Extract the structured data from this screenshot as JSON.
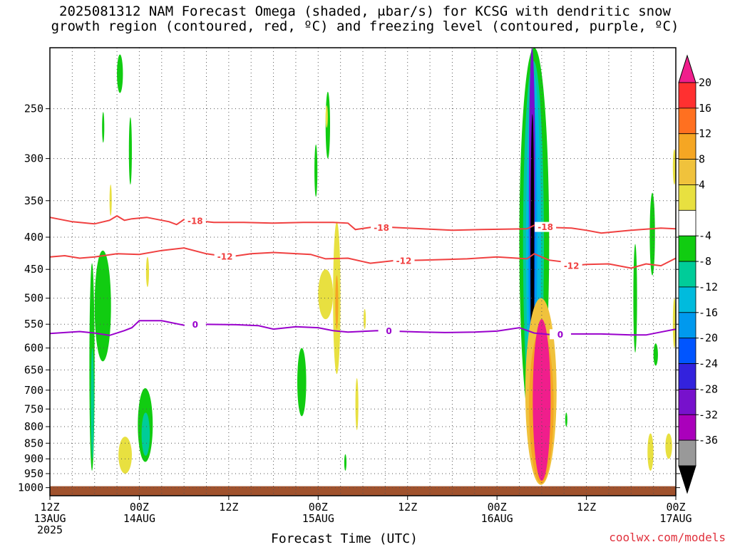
{
  "title_lines": [
    "2025081312 NAM Forecast Omega (shaded, μbar/s) for KCSG with dendritic snow",
    "growth region (contoured, red, ºC) and freezing level (contoured, purple, ºC)"
  ],
  "x_axis_label": "Forecast Time (UTC)",
  "credit": "coolwx.com/models",
  "chart_data": {
    "type": "heatmap",
    "y_axis": {
      "scale": "log",
      "units": "hPa",
      "range": [
        200,
        1030
      ],
      "ticks": [
        250,
        300,
        350,
        400,
        450,
        500,
        550,
        600,
        650,
        700,
        750,
        800,
        850,
        900,
        950,
        1000
      ]
    },
    "x_axis": {
      "range_hours": [
        0,
        84
      ],
      "ticks": [
        {
          "hour": 0,
          "lines": [
            "12Z",
            "13AUG",
            "2025"
          ]
        },
        {
          "hour": 12,
          "lines": [
            "00Z",
            "14AUG"
          ]
        },
        {
          "hour": 24,
          "lines": [
            "12Z"
          ]
        },
        {
          "hour": 36,
          "lines": [
            "00Z",
            "15AUG"
          ]
        },
        {
          "hour": 48,
          "lines": [
            "12Z"
          ]
        },
        {
          "hour": 60,
          "lines": [
            "00Z",
            "16AUG"
          ]
        },
        {
          "hour": 72,
          "lines": [
            "12Z"
          ]
        },
        {
          "hour": 84,
          "lines": [
            "00Z",
            "17AUG"
          ]
        }
      ],
      "grid_every_hours": 3
    },
    "grid": true,
    "colorbar": {
      "placement": "right",
      "labels": [
        "20",
        "16",
        "12",
        "8",
        "4",
        "-4",
        "-8",
        "-12",
        "-16",
        "-20",
        "-24",
        "-28",
        "-32",
        "-36"
      ],
      "bins": [
        {
          "color": "#f01e8c"
        },
        {
          "color": "#ff3030"
        },
        {
          "color": "#ff7020"
        },
        {
          "color": "#f5a623"
        },
        {
          "color": "#f0c23c"
        },
        {
          "color": "#e8e040"
        },
        {
          "color": "#ffffff"
        },
        {
          "color": "#11cc11"
        },
        {
          "color": "#00cc99"
        },
        {
          "color": "#00bbdd"
        },
        {
          "color": "#0099ee"
        },
        {
          "color": "#0055ff"
        },
        {
          "color": "#3322dd"
        },
        {
          "color": "#7711cc"
        },
        {
          "color": "#aa00bb"
        },
        {
          "color": "#999999"
        },
        {
          "color": "#000000"
        }
      ]
    },
    "ground_color": "#a0522d",
    "contours": [
      {
        "label": "-18",
        "color": "#f04040",
        "role": "dendritic snow growth region",
        "points": [
          [
            0,
            372
          ],
          [
            3,
            378
          ],
          [
            6,
            381
          ],
          [
            8,
            376
          ],
          [
            9,
            370
          ],
          [
            10,
            376
          ],
          [
            11,
            374
          ],
          [
            13,
            372
          ],
          [
            16,
            378
          ],
          [
            17,
            382
          ],
          [
            18,
            375
          ],
          [
            22,
            379
          ],
          [
            26,
            379
          ],
          [
            30,
            380
          ],
          [
            34,
            379
          ],
          [
            38,
            379
          ],
          [
            40,
            380
          ],
          [
            41,
            389
          ],
          [
            43,
            386
          ],
          [
            46,
            386
          ],
          [
            50,
            388
          ],
          [
            54,
            390
          ],
          [
            58,
            389
          ],
          [
            64,
            388
          ],
          [
            65,
            383
          ],
          [
            67,
            386
          ],
          [
            70,
            387
          ],
          [
            72,
            390
          ],
          [
            74,
            394
          ],
          [
            76,
            392
          ],
          [
            78,
            390
          ],
          [
            82,
            387
          ],
          [
            84,
            388
          ]
        ],
        "label_hours": [
          19.5,
          44.5,
          66.5
        ]
      },
      {
        "label": "-12",
        "color": "#f04040",
        "role": "dendritic snow growth region",
        "points": [
          [
            0,
            430
          ],
          [
            2,
            428
          ],
          [
            4,
            432
          ],
          [
            6,
            430
          ],
          [
            9,
            425
          ],
          [
            12,
            426
          ],
          [
            15,
            420
          ],
          [
            18,
            416
          ],
          [
            21,
            425
          ],
          [
            24,
            430
          ],
          [
            27,
            425
          ],
          [
            30,
            423
          ],
          [
            35,
            426
          ],
          [
            37,
            433
          ],
          [
            40,
            432
          ],
          [
            43,
            440
          ],
          [
            46,
            436
          ],
          [
            50,
            435
          ],
          [
            56,
            433
          ],
          [
            60,
            430
          ],
          [
            64,
            433
          ],
          [
            65,
            425
          ],
          [
            67,
            435
          ],
          [
            69,
            438
          ],
          [
            70,
            444
          ],
          [
            72,
            442
          ],
          [
            75,
            441
          ],
          [
            78,
            448
          ],
          [
            80,
            441
          ],
          [
            82,
            444
          ],
          [
            84,
            432
          ]
        ],
        "label_hours": [
          23.5,
          47.5,
          70.0
        ]
      },
      {
        "label": "0",
        "color": "#9900cc",
        "role": "freezing level",
        "points": [
          [
            0,
            569
          ],
          [
            4,
            565
          ],
          [
            6,
            568
          ],
          [
            8,
            573
          ],
          [
            10,
            563
          ],
          [
            11,
            557
          ],
          [
            12,
            543
          ],
          [
            15,
            543
          ],
          [
            18,
            552
          ],
          [
            20,
            550
          ],
          [
            25,
            551
          ],
          [
            28,
            553
          ],
          [
            30,
            560
          ],
          [
            33,
            555
          ],
          [
            36,
            557
          ],
          [
            38,
            563
          ],
          [
            40,
            566
          ],
          [
            44,
            563
          ],
          [
            50,
            566
          ],
          [
            53,
            567
          ],
          [
            57,
            566
          ],
          [
            60,
            564
          ],
          [
            63,
            557
          ],
          [
            65,
            568
          ],
          [
            67,
            571
          ],
          [
            70,
            570
          ],
          [
            74,
            570
          ],
          [
            78,
            572
          ],
          [
            80,
            572
          ],
          [
            82,
            566
          ],
          [
            84,
            560
          ]
        ],
        "label_hours": [
          19.5,
          45.5,
          68.5
        ]
      }
    ],
    "shaded_regions": [
      {
        "color": "#11cc11",
        "hours": [
          5.3,
          6.0
        ],
        "hpa": [
          440,
          940
        ]
      },
      {
        "color": "#00cc99",
        "hours": [
          5.5,
          5.9
        ],
        "hpa": [
          600,
          900
        ]
      },
      {
        "color": "#11cc11",
        "hours": [
          6.0,
          8.2
        ],
        "hpa": [
          420,
          630
        ]
      },
      {
        "color": "#11cc11",
        "hours": [
          9.0,
          9.8
        ],
        "hpa": [
          205,
          236
        ]
      },
      {
        "color": "#11cc11",
        "hours": [
          7.0,
          7.3
        ],
        "hpa": [
          253,
          283
        ]
      },
      {
        "color": "#e8e040",
        "hours": [
          8.0,
          8.3
        ],
        "hpa": [
          330,
          370
        ]
      },
      {
        "color": "#11cc11",
        "hours": [
          10.6,
          11.0
        ],
        "hpa": [
          258,
          330
        ]
      },
      {
        "color": "#e8e040",
        "hours": [
          12.9,
          13.3
        ],
        "hpa": [
          430,
          480
        ]
      },
      {
        "color": "#11cc11",
        "hours": [
          11.8,
          13.8
        ],
        "hpa": [
          695,
          910
        ]
      },
      {
        "color": "#00cc99",
        "hours": [
          12.3,
          13.4
        ],
        "hpa": [
          760,
          890
        ]
      },
      {
        "color": "#e8e040",
        "hours": [
          9.2,
          11.0
        ],
        "hpa": [
          830,
          950
        ]
      },
      {
        "color": "#11cc11",
        "hours": [
          37.0,
          37.6
        ],
        "hpa": [
          235,
          300
        ]
      },
      {
        "color": "#e8e040",
        "hours": [
          37.0,
          37.3
        ],
        "hpa": [
          247,
          268
        ]
      },
      {
        "color": "#11cc11",
        "hours": [
          35.5,
          35.9
        ],
        "hpa": [
          285,
          345
        ]
      },
      {
        "color": "#e8e040",
        "hours": [
          38.0,
          39.0
        ],
        "hpa": [
          378,
          660
        ]
      },
      {
        "color": "#f5a623",
        "hours": [
          38.3,
          38.7
        ],
        "hpa": [
          460,
          560
        ]
      },
      {
        "color": "#e8e040",
        "hours": [
          36.0,
          38.0
        ],
        "hpa": [
          450,
          540
        ]
      },
      {
        "color": "#e8e040",
        "hours": [
          42.1,
          42.4
        ],
        "hpa": [
          520,
          560
        ]
      },
      {
        "color": "#e8e040",
        "hours": [
          41.0,
          41.4
        ],
        "hpa": [
          670,
          810
        ]
      },
      {
        "color": "#11cc11",
        "hours": [
          33.2,
          34.4
        ],
        "hpa": [
          600,
          770
        ]
      },
      {
        "color": "#11cc11",
        "hours": [
          39.5,
          39.8
        ],
        "hpa": [
          885,
          940
        ]
      },
      {
        "color": "#11cc11",
        "hours": [
          63.0,
          67.0
        ],
        "hpa": [
          200,
          830
        ]
      },
      {
        "color": "#00cc99",
        "hours": [
          63.5,
          66.3
        ],
        "hpa": [
          210,
          800
        ]
      },
      {
        "color": "#00bbdd",
        "hours": [
          63.9,
          65.9
        ],
        "hpa": [
          220,
          780
        ]
      },
      {
        "color": "#0099ee",
        "hours": [
          64.2,
          65.4
        ],
        "hpa": [
          235,
          700
        ]
      },
      {
        "color": "#0055ff",
        "hours": [
          64.4,
          65.1
        ],
        "hpa": [
          240,
          650
        ]
      },
      {
        "color": "#7711cc",
        "hours": [
          64.3,
          65.1
        ],
        "hpa": [
          200,
          470
        ]
      },
      {
        "color": "#000000",
        "hours": [
          64.5,
          65.0
        ],
        "hpa": [
          255,
          760
        ]
      },
      {
        "color": "#f0c23c",
        "hours": [
          63.8,
          68.0
        ],
        "hpa": [
          500,
          990
        ]
      },
      {
        "color": "#f5a623",
        "hours": [
          64.3,
          67.6
        ],
        "hpa": [
          560,
          985
        ]
      },
      {
        "color": "#f01e8c",
        "hours": [
          64.8,
          67.2
        ],
        "hpa": [
          540,
          975
        ]
      },
      {
        "color": "#11cc11",
        "hours": [
          81.0,
          81.6
        ],
        "hpa": [
          590,
          640
        ]
      },
      {
        "color": "#11cc11",
        "hours": [
          78.3,
          78.8
        ],
        "hpa": [
          410,
          610
        ]
      },
      {
        "color": "#11cc11",
        "hours": [
          80.5,
          81.2
        ],
        "hpa": [
          340,
          460
        ]
      },
      {
        "color": "#e8e040",
        "hours": [
          83.6,
          84.0
        ],
        "hpa": [
          290,
          330
        ]
      },
      {
        "color": "#e8e040",
        "hours": [
          83.6,
          84.0
        ],
        "hpa": [
          500,
          600
        ]
      },
      {
        "color": "#e8e040",
        "hours": [
          80.2,
          81.0
        ],
        "hpa": [
          820,
          940
        ]
      },
      {
        "color": "#e8e040",
        "hours": [
          82.6,
          83.5
        ],
        "hpa": [
          820,
          900
        ]
      },
      {
        "color": "#11cc11",
        "hours": [
          69.2,
          69.4
        ],
        "hpa": [
          760,
          800
        ]
      }
    ]
  }
}
